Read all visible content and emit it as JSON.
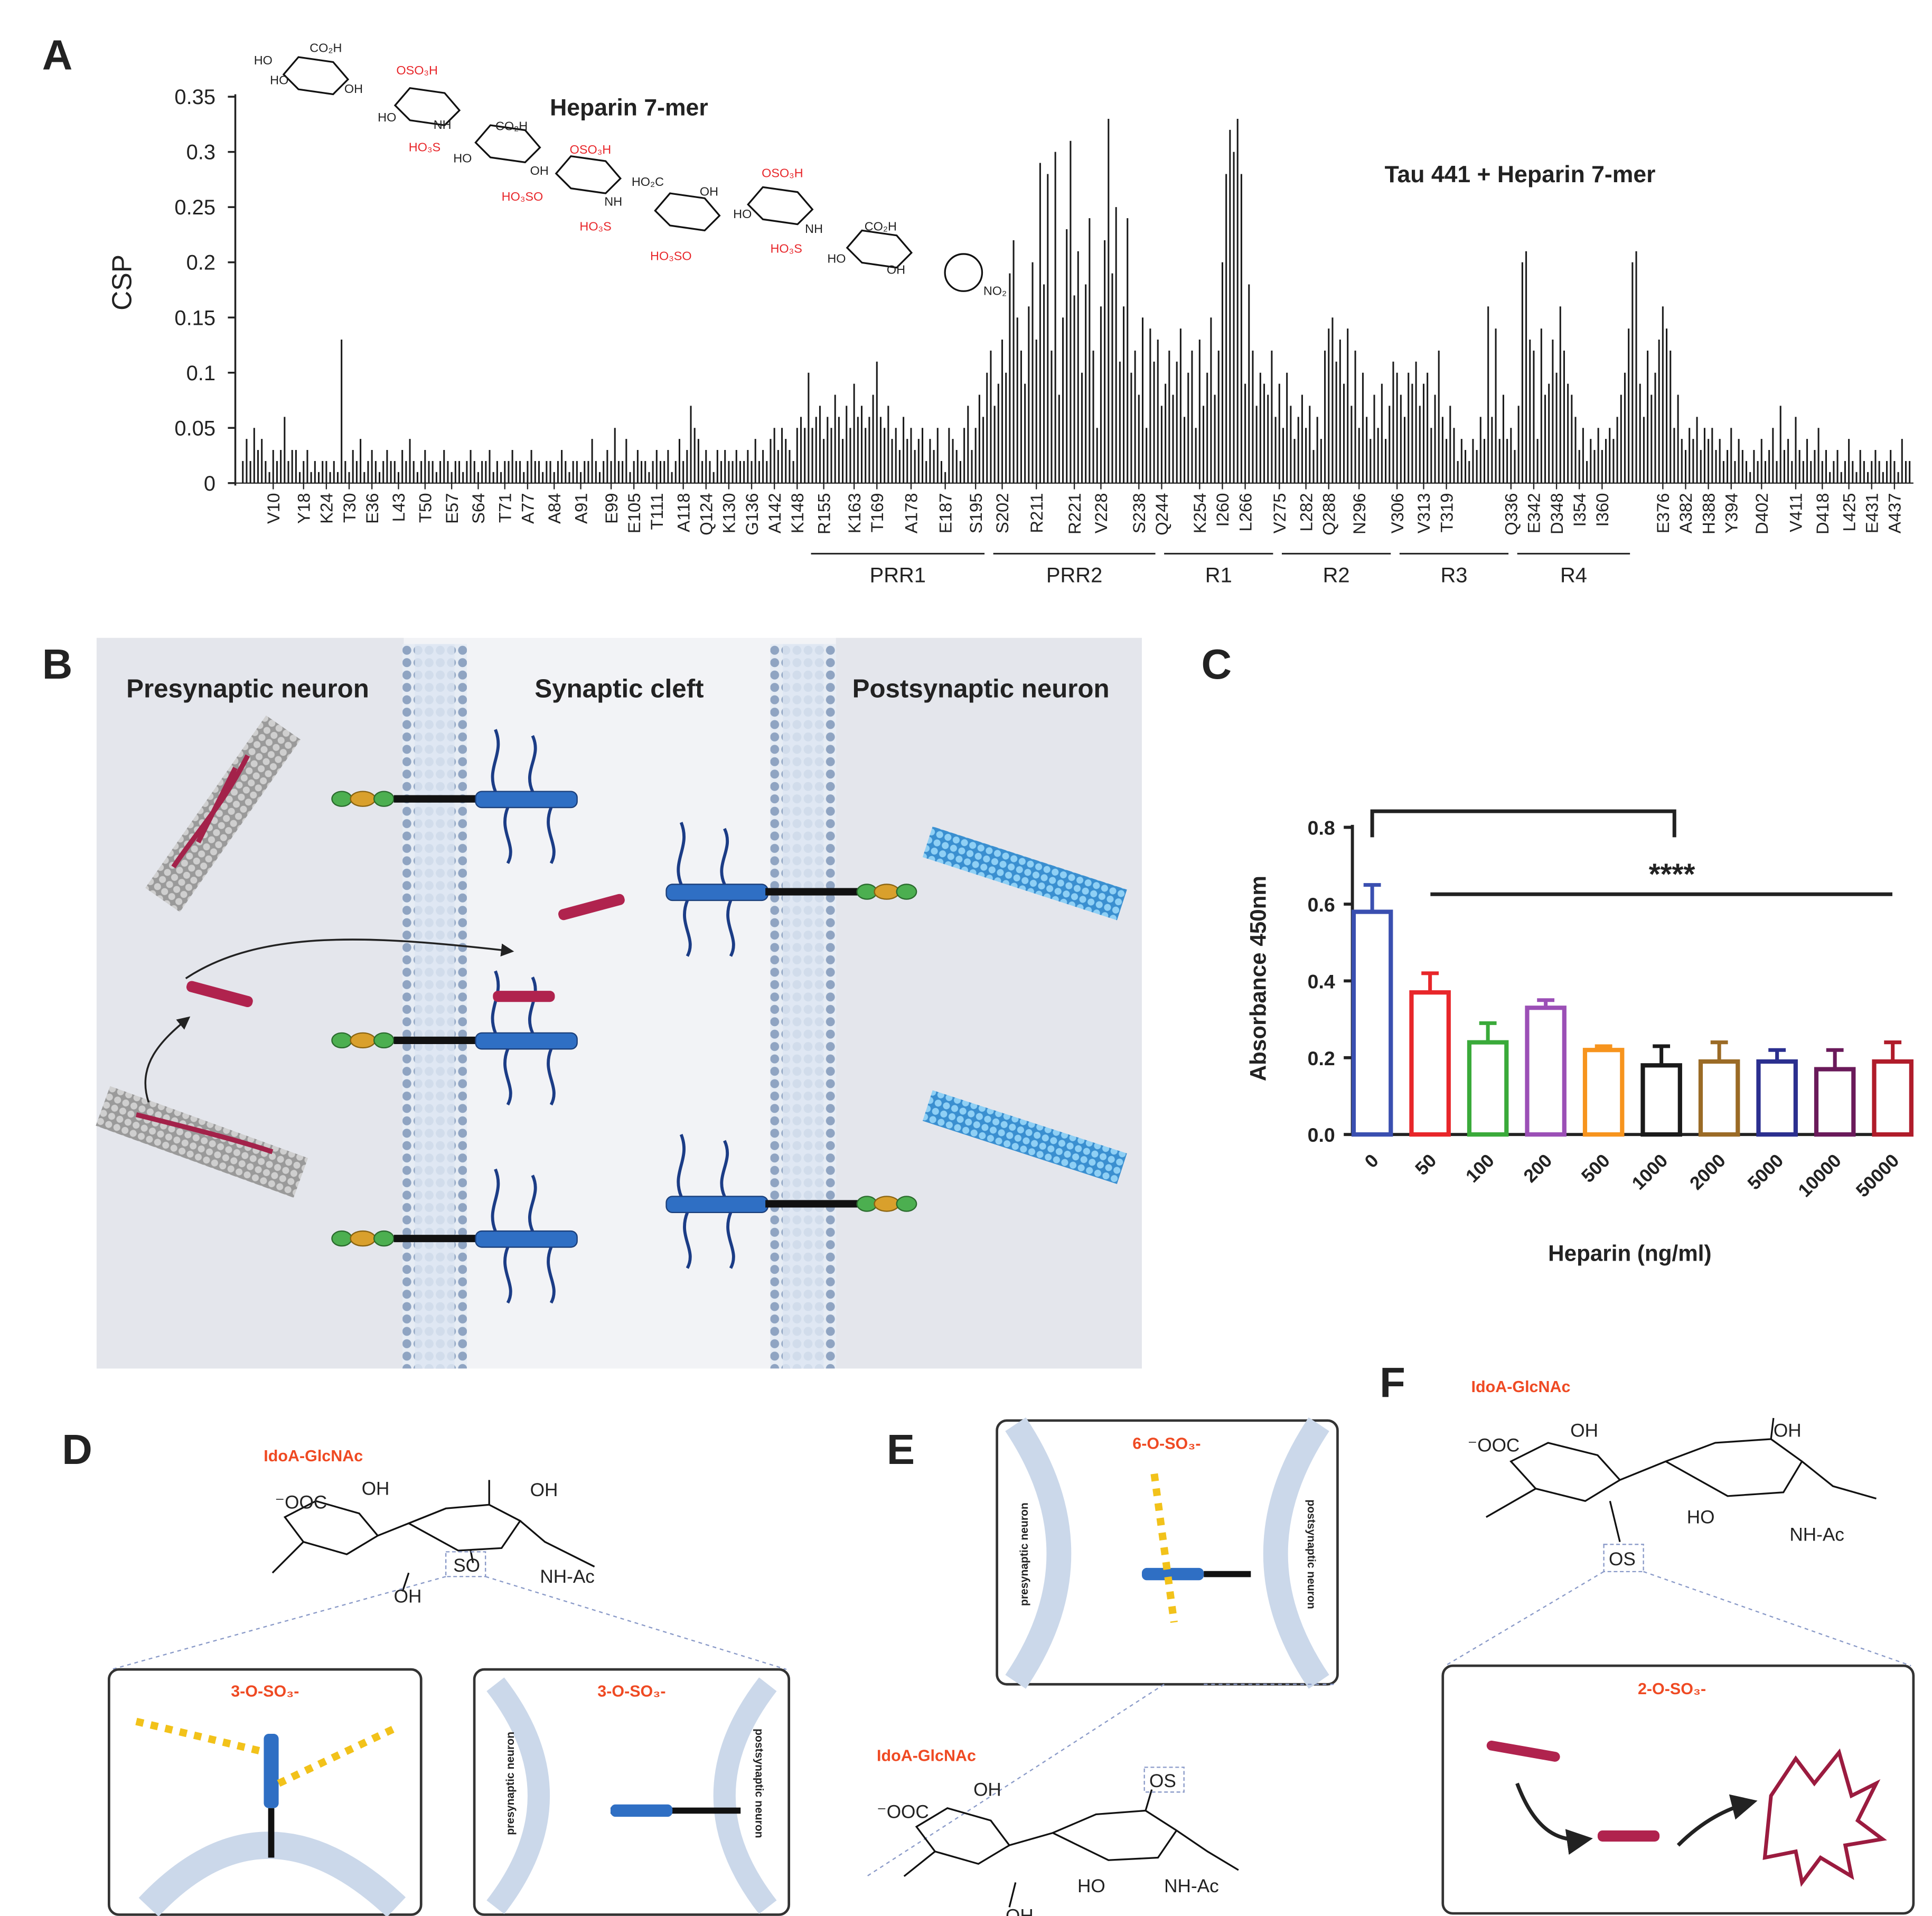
{
  "panel_letters": [
    "A",
    "B",
    "C",
    "D",
    "E",
    "F"
  ],
  "chart_data": [
    {
      "type": "bar",
      "ylabel": "CSP",
      "annotations": [
        "Heparin 7-mer",
        "Tau 441 + Heparin 7-mer"
      ],
      "color": "#1a1a1a",
      "xlim": [
        1,
        442
      ],
      "ylim": [
        0,
        0.35
      ],
      "yticks": [
        0,
        0.05,
        0.1,
        0.15,
        0.2,
        0.25,
        0.3,
        0.35
      ],
      "xticks": [
        {
          "value": 10,
          "label": "V10"
        },
        {
          "value": 18,
          "label": "Y18"
        },
        {
          "value": 24,
          "label": "K24"
        },
        {
          "value": 30,
          "label": "T30"
        },
        {
          "value": 36,
          "label": "E36"
        },
        {
          "value": 43,
          "label": "L43"
        },
        {
          "value": 50,
          "label": "T50"
        },
        {
          "value": 57,
          "label": "E57"
        },
        {
          "value": 64,
          "label": "S64"
        },
        {
          "value": 71,
          "label": "T71"
        },
        {
          "value": 77,
          "label": "A77"
        },
        {
          "value": 84,
          "label": "A84"
        },
        {
          "value": 91,
          "label": "A91"
        },
        {
          "value": 99,
          "label": "E99"
        },
        {
          "value": 105,
          "label": "E105"
        },
        {
          "value": 111,
          "label": "T111"
        },
        {
          "value": 118,
          "label": "A118"
        },
        {
          "value": 124,
          "label": "Q124"
        },
        {
          "value": 130,
          "label": "K130"
        },
        {
          "value": 136,
          "label": "G136"
        },
        {
          "value": 142,
          "label": "A142"
        },
        {
          "value": 148,
          "label": "K148"
        },
        {
          "value": 155,
          "label": "R155"
        },
        {
          "value": 163,
          "label": "K163"
        },
        {
          "value": 169,
          "label": "T169"
        },
        {
          "value": 178,
          "label": "A178"
        },
        {
          "value": 187,
          "label": "E187"
        },
        {
          "value": 195,
          "label": "S195"
        },
        {
          "value": 202,
          "label": "S202"
        },
        {
          "value": 211,
          "label": "R211"
        },
        {
          "value": 221,
          "label": "R221"
        },
        {
          "value": 228,
          "label": "V228"
        },
        {
          "value": 238,
          "label": "S238"
        },
        {
          "value": 244,
          "label": "Q244"
        },
        {
          "value": 254,
          "label": "K254"
        },
        {
          "value": 260,
          "label": "I260"
        },
        {
          "value": 266,
          "label": "L266"
        },
        {
          "value": 275,
          "label": "V275"
        },
        {
          "value": 282,
          "label": "L282"
        },
        {
          "value": 288,
          "label": "Q288"
        },
        {
          "value": 296,
          "label": "N296"
        },
        {
          "value": 306,
          "label": "V306"
        },
        {
          "value": 313,
          "label": "V313"
        },
        {
          "value": 319,
          "label": "T319"
        },
        {
          "value": 336,
          "label": "Q336"
        },
        {
          "value": 342,
          "label": "E342"
        },
        {
          "value": 348,
          "label": "D348"
        },
        {
          "value": 354,
          "label": "I354"
        },
        {
          "value": 360,
          "label": "I360"
        },
        {
          "value": 376,
          "label": "E376"
        },
        {
          "value": 382,
          "label": "A382"
        },
        {
          "value": 388,
          "label": "H388"
        },
        {
          "value": 394,
          "label": "Y394"
        },
        {
          "value": 402,
          "label": "D402"
        },
        {
          "value": 411,
          "label": "V411"
        },
        {
          "value": 418,
          "label": "D418"
        },
        {
          "value": 425,
          "label": "L425"
        },
        {
          "value": 431,
          "label": "E431"
        },
        {
          "value": 437,
          "label": "A437"
        }
      ],
      "regions": [
        {
          "label": "PRR1",
          "start": 151,
          "end": 198
        },
        {
          "label": "PRR2",
          "start": 199,
          "end": 243
        },
        {
          "label": "R1",
          "start": 244,
          "end": 274
        },
        {
          "label": "R2",
          "start": 275,
          "end": 305
        },
        {
          "label": "R3",
          "start": 306,
          "end": 336
        },
        {
          "label": "R4",
          "start": 337,
          "end": 368
        }
      ],
      "structure_labels": [
        "HO",
        "CO₂H",
        "HO",
        "OH",
        "OSO₃H",
        "HO",
        "NH",
        "HO₃S",
        "CO₂H",
        "HO",
        "OH",
        "OSO₃H",
        "HO₃SO",
        "NH",
        "HO₃S",
        "HO₂C",
        "OH",
        "HO₃SO",
        "OSO₃H",
        "HO",
        "NH",
        "HO₃S",
        "CO₂H",
        "HO",
        "OH",
        "NO₂"
      ],
      "x": [
        2,
        3,
        4,
        5,
        6,
        7,
        8,
        9,
        10,
        11,
        12,
        13,
        14,
        15,
        16,
        17,
        18,
        19,
        20,
        21,
        22,
        23,
        24,
        25,
        26,
        27,
        28,
        29,
        30,
        31,
        32,
        33,
        34,
        35,
        36,
        37,
        38,
        39,
        40,
        41,
        42,
        43,
        44,
        45,
        46,
        47,
        48,
        49,
        50,
        51,
        52,
        53,
        54,
        55,
        56,
        57,
        58,
        59,
        60,
        61,
        62,
        63,
        64,
        65,
        66,
        67,
        68,
        69,
        70,
        71,
        72,
        73,
        74,
        75,
        76,
        77,
        78,
        79,
        80,
        81,
        82,
        83,
        84,
        85,
        86,
        87,
        88,
        89,
        90,
        91,
        92,
        93,
        94,
        95,
        96,
        97,
        98,
        99,
        100,
        101,
        102,
        103,
        104,
        105,
        106,
        107,
        108,
        109,
        110,
        111,
        112,
        113,
        114,
        115,
        116,
        117,
        118,
        119,
        120,
        121,
        122,
        123,
        124,
        125,
        126,
        127,
        128,
        129,
        130,
        131,
        132,
        133,
        134,
        135,
        136,
        137,
        138,
        139,
        140,
        141,
        142,
        143,
        144,
        145,
        146,
        147,
        148,
        149,
        150,
        151,
        152,
        153,
        154,
        155,
        156,
        157,
        158,
        159,
        160,
        161,
        162,
        163,
        164,
        165,
        166,
        167,
        168,
        169,
        170,
        171,
        172,
        173,
        174,
        175,
        176,
        177,
        178,
        179,
        180,
        181,
        182,
        183,
        184,
        185,
        186,
        187,
        188,
        189,
        190,
        191,
        192,
        193,
        194,
        195,
        196,
        197,
        198,
        199,
        200,
        201,
        202,
        203,
        204,
        205,
        206,
        207,
        208,
        209,
        210,
        211,
        212,
        213,
        214,
        215,
        216,
        217,
        218,
        219,
        220,
        221,
        222,
        223,
        224,
        225,
        226,
        227,
        228,
        229,
        230,
        231,
        232,
        233,
        234,
        235,
        236,
        237,
        238,
        239,
        240,
        241,
        242,
        243,
        244,
        245,
        246,
        247,
        248,
        249,
        250,
        251,
        252,
        253,
        254,
        255,
        256,
        257,
        258,
        259,
        260,
        261,
        262,
        263,
        264,
        265,
        266,
        267,
        268,
        269,
        270,
        271,
        272,
        273,
        274,
        275,
        276,
        277,
        278,
        279,
        280,
        281,
        282,
        283,
        284,
        285,
        286,
        287,
        288,
        289,
        290,
        291,
        292,
        293,
        294,
        295,
        296,
        297,
        298,
        299,
        300,
        301,
        302,
        303,
        304,
        305,
        306,
        307,
        308,
        309,
        310,
        311,
        312,
        313,
        314,
        315,
        316,
        317,
        318,
        319,
        320,
        321,
        322,
        323,
        324,
        325,
        326,
        327,
        328,
        329,
        330,
        331,
        332,
        333,
        334,
        335,
        336,
        337,
        338,
        339,
        340,
        341,
        342,
        343,
        344,
        345,
        346,
        347,
        348,
        349,
        350,
        351,
        352,
        353,
        354,
        355,
        356,
        357,
        358,
        359,
        360,
        361,
        362,
        363,
        364,
        365,
        366,
        367,
        368,
        369,
        370,
        371,
        372,
        373,
        374,
        375,
        376,
        377,
        378,
        379,
        380,
        381,
        382,
        383,
        384,
        385,
        386,
        387,
        388,
        389,
        390,
        391,
        392,
        393,
        394,
        395,
        396,
        397,
        398,
        399,
        400,
        401,
        402,
        403,
        404,
        405,
        406,
        407,
        408,
        409,
        410,
        411,
        412,
        413,
        414,
        415,
        416,
        417,
        418,
        419,
        420,
        421,
        422,
        423,
        424,
        425,
        426,
        427,
        428,
        429,
        430,
        431,
        432,
        433,
        434,
        435,
        436,
        437,
        438,
        439,
        440,
        441
      ],
      "values": [
        0.02,
        0.04,
        0.02,
        0.05,
        0.03,
        0.04,
        0.02,
        0.01,
        0.03,
        0.02,
        0.03,
        0.06,
        0.02,
        0.03,
        0.03,
        0.01,
        0.02,
        0.03,
        0.01,
        0.02,
        0.01,
        0.02,
        0.02,
        0.01,
        0.02,
        0.01,
        0.13,
        0.02,
        0.01,
        0.03,
        0.02,
        0.04,
        0.01,
        0.02,
        0.03,
        0.02,
        0.01,
        0.02,
        0.03,
        0.02,
        0.02,
        0.01,
        0.03,
        0.02,
        0.04,
        0.02,
        0.01,
        0.02,
        0.03,
        0.02,
        0.02,
        0.01,
        0.02,
        0.03,
        0.02,
        0.01,
        0.02,
        0.02,
        0.01,
        0.02,
        0.03,
        0.02,
        0.01,
        0.02,
        0.02,
        0.03,
        0.01,
        0.02,
        0.01,
        0.02,
        0.02,
        0.03,
        0.02,
        0.02,
        0.01,
        0.02,
        0.03,
        0.02,
        0.02,
        0.01,
        0.02,
        0.02,
        0.01,
        0.02,
        0.03,
        0.02,
        0.01,
        0.02,
        0.02,
        0.01,
        0.02,
        0.02,
        0.04,
        0.02,
        0.01,
        0.02,
        0.03,
        0.02,
        0.05,
        0.02,
        0.02,
        0.04,
        0.01,
        0.02,
        0.03,
        0.02,
        0.02,
        0.01,
        0.02,
        0.03,
        0.02,
        0.02,
        0.03,
        0.01,
        0.02,
        0.04,
        0.02,
        0.03,
        0.07,
        0.05,
        0.04,
        0.02,
        0.03,
        0.02,
        0.01,
        0.03,
        0.02,
        0.03,
        0.02,
        0.02,
        0.03,
        0.02,
        0.02,
        0.03,
        0.02,
        0.04,
        0.02,
        0.03,
        0.02,
        0.04,
        0.05,
        0.03,
        0.05,
        0.04,
        0.03,
        0.02,
        0.05,
        0.06,
        0.05,
        0.1,
        0.05,
        0.06,
        0.07,
        0.04,
        0.06,
        0.05,
        0.08,
        0.06,
        0.04,
        0.07,
        0.05,
        0.09,
        0.06,
        0.07,
        0.05,
        0.06,
        0.08,
        0.11,
        0.06,
        0.05,
        0.07,
        0.04,
        0.05,
        0.03,
        0.06,
        0.04,
        0.05,
        0.03,
        0.04,
        0.05,
        0.02,
        0.04,
        0.03,
        0.05,
        0.02,
        0.01,
        0.05,
        0.04,
        0.03,
        0.02,
        0.05,
        0.07,
        0.03,
        0.05,
        0.08,
        0.06,
        0.1,
        0.12,
        0.07,
        0.09,
        0.13,
        0.1,
        0.19,
        0.22,
        0.15,
        0.12,
        0.09,
        0.16,
        0.2,
        0.13,
        0.29,
        0.18,
        0.28,
        0.12,
        0.3,
        0.08,
        0.15,
        0.23,
        0.31,
        0.17,
        0.21,
        0.1,
        0.18,
        0.24,
        0.12,
        0.05,
        0.16,
        0.22,
        0.33,
        0.19,
        0.25,
        0.11,
        0.16,
        0.24,
        0.1,
        0.12,
        0.08,
        0.15,
        0.05,
        0.14,
        0.11,
        0.13,
        0.07,
        0.09,
        0.12,
        0.08,
        0.11,
        0.14,
        0.06,
        0.1,
        0.12,
        0.05,
        0.13,
        0.07,
        0.1,
        0.15,
        0.08,
        0.12,
        0.2,
        0.28,
        0.32,
        0.3,
        0.33,
        0.28,
        0.09,
        0.18,
        0.12,
        0.07,
        0.1,
        0.09,
        0.08,
        0.12,
        0.06,
        0.09,
        0.05,
        0.1,
        0.07,
        0.04,
        0.06,
        0.08,
        0.05,
        0.07,
        0.03,
        0.06,
        0.04,
        0.12,
        0.14,
        0.15,
        0.11,
        0.13,
        0.09,
        0.14,
        0.07,
        0.12,
        0.05,
        0.1,
        0.06,
        0.04,
        0.08,
        0.05,
        0.09,
        0.04,
        0.07,
        0.11,
        0.1,
        0.08,
        0.06,
        0.1,
        0.09,
        0.11,
        0.07,
        0.09,
        0.1,
        0.05,
        0.08,
        0.12,
        0.06,
        0.04,
        0.07,
        0.05,
        0.02,
        0.04,
        0.03,
        0.02,
        0.04,
        0.03,
        0.06,
        0.04,
        0.16,
        0.06,
        0.14,
        0.04,
        0.08,
        0.04,
        0.05,
        0.03,
        0.07,
        0.2,
        0.21,
        0.13,
        0.12,
        0.04,
        0.14,
        0.08,
        0.09,
        0.13,
        0.1,
        0.16,
        0.12,
        0.09,
        0.08,
        0.06,
        0.03,
        0.05,
        0.02,
        0.04,
        0.03,
        0.05,
        0.03,
        0.04,
        0.05,
        0.04,
        0.06,
        0.08,
        0.1,
        0.14,
        0.2,
        0.21,
        0.09,
        0.06,
        0.12,
        0.08,
        0.1,
        0.13,
        0.16,
        0.14,
        0.12,
        0.05,
        0.08,
        0.04,
        0.03,
        0.05,
        0.04,
        0.06,
        0.03,
        0.05,
        0.04,
        0.05,
        0.03,
        0.04,
        0.02,
        0.03,
        0.05,
        0.02,
        0.04,
        0.03,
        0.02,
        0.01,
        0.03,
        0.02,
        0.04,
        0.02,
        0.03,
        0.05,
        0.02,
        0.07,
        0.03,
        0.04,
        0.02,
        0.06,
        0.03,
        0.02,
        0.04,
        0.02,
        0.03,
        0.05,
        0.02,
        0.03,
        0.01,
        0.02,
        0.03,
        0.01,
        0.02,
        0.04,
        0.02,
        0.01,
        0.03,
        0.02,
        0.01,
        0.02,
        0.03,
        0.02,
        0.01,
        0.02,
        0.03,
        0.02,
        0.01,
        0.04,
        0.02,
        0.02
      ]
    },
    {
      "type": "bar",
      "ylabel": "Absorbance 450nm",
      "xlabel": "Heparin (ng/ml)",
      "significance": "****",
      "categories": [
        "0",
        "50",
        "100",
        "200",
        "500",
        "1000",
        "2000",
        "5000",
        "10000",
        "50000"
      ],
      "values": [
        0.58,
        0.37,
        0.24,
        0.33,
        0.22,
        0.18,
        0.19,
        0.19,
        0.17,
        0.19
      ],
      "errors": [
        0.07,
        0.05,
        0.05,
        0.02,
        0.01,
        0.05,
        0.05,
        0.03,
        0.05,
        0.05
      ],
      "colors": [
        "#3a4fb0",
        "#e8262a",
        "#3aaa3a",
        "#9b4fb6",
        "#f7941d",
        "#1a1a1a",
        "#9b6b26",
        "#2b2f8f",
        "#6a1a5a",
        "#b01c2a"
      ],
      "ylim": [
        0,
        0.8
      ],
      "yticks": [
        {
          "value": 0,
          "label": "0.0"
        },
        0.2,
        0.4,
        0.6,
        0.8
      ]
    }
  ],
  "panel_b": {
    "presynaptic": "Presynaptic neuron",
    "cleft": "Synaptic cleft",
    "postsynaptic": "Postsynaptic neuron"
  },
  "panel_d": {
    "title": "IdoA-GlcNAc",
    "structure_labels": [
      "⁻OOC",
      "OH",
      "OH",
      "OH",
      "SO",
      "NH-Ac"
    ],
    "inset_1": "3-O-SO₃-",
    "inset_2": "3-O-SO₃-",
    "presynaptic": "presynaptic neuron",
    "postsynaptic": "postsynaptic neuron"
  },
  "panel_e": {
    "inset": "6-O-SO₃-",
    "presynaptic": "presynaptic neuron",
    "postsynaptic": "postsynaptic neuron",
    "title": "IdoA-GlcNAc",
    "structure_labels": [
      "⁻OOC",
      "OH",
      "OH",
      "HO",
      "OS",
      "NH-Ac"
    ]
  },
  "panel_f": {
    "title": "IdoA-GlcNAc",
    "structure_labels": [
      "⁻OOC",
      "OH",
      "OH",
      "HO",
      "NH-Ac",
      "OS"
    ],
    "inset": "2-O-SO₃-"
  }
}
